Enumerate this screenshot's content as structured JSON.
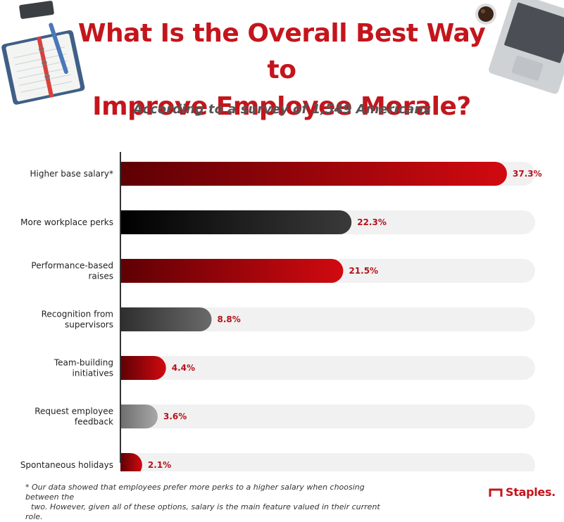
{
  "header": {
    "title_line1": "What Is the Overall Best Way to",
    "title_line2": "Improve Employee Morale?",
    "subtitle": "According to a survey of 1,549 Americans"
  },
  "colors": {
    "title": "#c4151c",
    "red_dark": "#5e0004",
    "red_light": "#d10a10",
    "black_dark": "#000000",
    "black_light": "#3a3a3a",
    "gray_dark": "#2e2e2e",
    "gray_light": "#6a6a6a",
    "lightgray_dark": "#6e6e6e",
    "lightgray_light": "#a8a8a8",
    "track": "#f1f1f1",
    "value_label": "#b5121b"
  },
  "chart_data": {
    "type": "bar",
    "orientation": "horizontal",
    "categories": [
      [
        "Higher base salary*"
      ],
      [
        "More workplace perks"
      ],
      [
        "Performance-based",
        "raises"
      ],
      [
        "Recognition from",
        "supervisors"
      ],
      [
        "Team-building",
        "initiatives"
      ],
      [
        "Request employee",
        "feedback"
      ],
      [
        "Spontaneous holidays"
      ]
    ],
    "values": [
      37.3,
      22.3,
      21.5,
      8.8,
      4.4,
      3.6,
      2.1
    ],
    "value_labels": [
      "37.3%",
      "22.3%",
      "21.5%",
      "8.8%",
      "4.4%",
      "3.6%",
      "2.1%"
    ],
    "bar_styles": [
      "red",
      "black",
      "red",
      "gray",
      "red",
      "lightgray",
      "red"
    ],
    "xlim": [
      0,
      37.3
    ],
    "grid": false,
    "legend": "none"
  },
  "footnote": {
    "line1": "* Our data showed that employees prefer more perks to a higher salary when choosing between the",
    "line2": "two. However, given all of these options, salary is the main feature valued in their current role."
  },
  "brand": {
    "name": "Staples."
  },
  "decorations": {
    "left": "notebook-with-pen-icon",
    "right": "laptop-and-coffee-icon"
  }
}
